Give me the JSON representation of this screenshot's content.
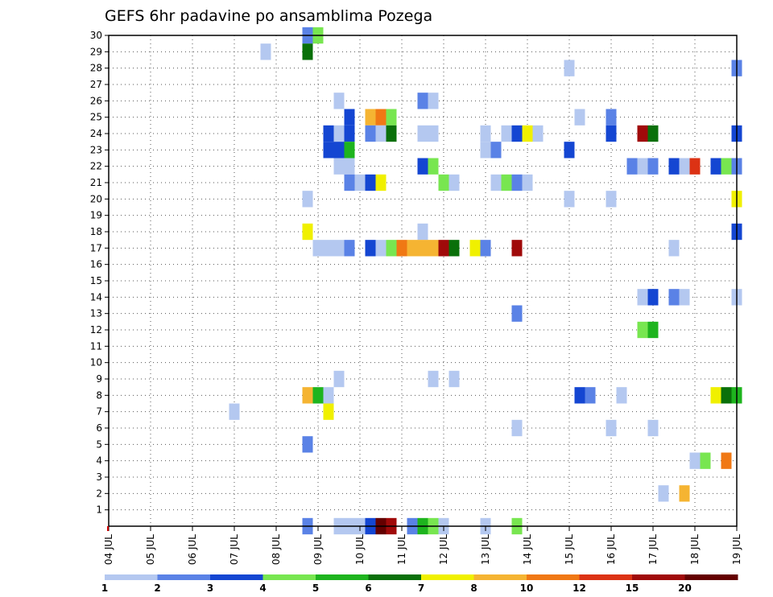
{
  "chart_data": {
    "type": "heatmap",
    "title": "GEFS 6hr padavine po ansamblima Pozega",
    "xlabel": "",
    "ylabel": "",
    "x_tick_labels": [
      "04 JUL",
      "05 JUL",
      "06 JUL",
      "07 JUL",
      "08 JUL",
      "09 JUL",
      "10 JUL",
      "11 JUL",
      "12 JUL",
      "13 JUL",
      "14 JUL",
      "15 JUL",
      "16 JUL",
      "17 JUL",
      "18 JUL",
      "19 JUL"
    ],
    "y_tick_labels": [
      "1",
      "2",
      "3",
      "4",
      "5",
      "6",
      "7",
      "8",
      "9",
      "10",
      "11",
      "12",
      "13",
      "14",
      "15",
      "16",
      "17",
      "18",
      "19",
      "20",
      "21",
      "22",
      "23",
      "24",
      "25",
      "26",
      "27",
      "28",
      "29",
      "30"
    ],
    "x_range_days": [
      4,
      19
    ],
    "y_range": [
      0,
      30
    ],
    "grid": "dotted",
    "legend_position": "bottom",
    "colorbar": {
      "labels": [
        "1",
        "2",
        "3",
        "4",
        "5",
        "6",
        "7",
        "8",
        "10",
        "12",
        "15",
        "20"
      ],
      "colors": [
        "#b4c8f0",
        "#5a82e6",
        "#1446d2",
        "#78e650",
        "#1eb41e",
        "#0a700a",
        "#f0f000",
        "#f5b432",
        "#f07814",
        "#dc3214",
        "#a00a0a",
        "#640000"
      ]
    },
    "palette": [
      "#b4c8f0",
      "#5a82e6",
      "#1446d2",
      "#78e650",
      "#1eb41e",
      "#0a700a",
      "#f0f000",
      "#f5b432",
      "#f07814",
      "#dc3214",
      "#a00a0a",
      "#640000"
    ],
    "cell_format": "[day, ensemble_member, color_class_index(0=1-2mm ... 11=>20mm)]",
    "cells": [
      [
        8.75,
        30,
        1
      ],
      [
        9.0,
        30,
        3
      ],
      [
        7.75,
        29,
        0
      ],
      [
        8.75,
        29,
        5
      ],
      [
        15.0,
        28,
        0
      ],
      [
        19.0,
        28,
        1
      ],
      [
        9.5,
        26,
        0
      ],
      [
        11.5,
        26,
        1
      ],
      [
        11.75,
        26,
        0
      ],
      [
        9.75,
        25,
        2
      ],
      [
        10.25,
        25,
        7
      ],
      [
        10.5,
        25,
        8
      ],
      [
        10.75,
        25,
        3
      ],
      [
        15.25,
        25,
        0
      ],
      [
        16.0,
        25,
        1
      ],
      [
        9.25,
        24,
        2
      ],
      [
        9.5,
        24,
        0
      ],
      [
        9.75,
        24,
        2
      ],
      [
        10.25,
        24,
        1
      ],
      [
        10.5,
        24,
        0
      ],
      [
        10.75,
        24,
        5
      ],
      [
        11.5,
        24,
        0
      ],
      [
        11.75,
        24,
        0
      ],
      [
        13.0,
        24,
        0
      ],
      [
        13.5,
        24,
        0
      ],
      [
        13.75,
        24,
        2
      ],
      [
        14.0,
        24,
        6
      ],
      [
        14.25,
        24,
        0
      ],
      [
        16.0,
        24,
        2
      ],
      [
        16.75,
        24,
        10
      ],
      [
        17.0,
        24,
        5
      ],
      [
        19.0,
        24,
        2
      ],
      [
        9.25,
        23,
        2
      ],
      [
        9.5,
        23,
        2
      ],
      [
        9.75,
        23,
        4
      ],
      [
        13.0,
        23,
        0
      ],
      [
        13.25,
        23,
        1
      ],
      [
        15.0,
        23,
        2
      ],
      [
        9.5,
        22,
        0
      ],
      [
        9.75,
        22,
        0
      ],
      [
        11.5,
        22,
        2
      ],
      [
        11.75,
        22,
        3
      ],
      [
        16.5,
        22,
        1
      ],
      [
        16.75,
        22,
        0
      ],
      [
        17.0,
        22,
        1
      ],
      [
        17.5,
        22,
        2
      ],
      [
        17.75,
        22,
        0
      ],
      [
        18.0,
        22,
        9
      ],
      [
        18.5,
        22,
        2
      ],
      [
        18.75,
        22,
        3
      ],
      [
        19.0,
        22,
        1
      ],
      [
        9.75,
        21,
        1
      ],
      [
        10.0,
        21,
        0
      ],
      [
        10.25,
        21,
        2
      ],
      [
        10.5,
        21,
        6
      ],
      [
        12.0,
        21,
        3
      ],
      [
        12.25,
        21,
        0
      ],
      [
        13.25,
        21,
        0
      ],
      [
        13.5,
        21,
        3
      ],
      [
        13.75,
        21,
        1
      ],
      [
        14.0,
        21,
        0
      ],
      [
        8.75,
        20,
        0
      ],
      [
        15.0,
        20,
        0
      ],
      [
        16.0,
        20,
        0
      ],
      [
        19.0,
        20,
        6
      ],
      [
        8.75,
        18,
        6
      ],
      [
        11.5,
        18,
        0
      ],
      [
        19.0,
        18,
        2
      ],
      [
        9.0,
        17,
        0
      ],
      [
        9.25,
        17,
        0
      ],
      [
        9.5,
        17,
        0
      ],
      [
        9.75,
        17,
        1
      ],
      [
        10.25,
        17,
        2
      ],
      [
        10.5,
        17,
        0
      ],
      [
        10.75,
        17,
        3
      ],
      [
        11.0,
        17,
        8
      ],
      [
        11.25,
        17,
        7
      ],
      [
        11.5,
        17,
        7
      ],
      [
        11.75,
        17,
        7
      ],
      [
        12.0,
        17,
        10
      ],
      [
        12.25,
        17,
        5
      ],
      [
        12.75,
        17,
        6
      ],
      [
        13.0,
        17,
        1
      ],
      [
        13.75,
        17,
        10
      ],
      [
        17.5,
        17,
        0
      ],
      [
        16.75,
        14,
        0
      ],
      [
        17.0,
        14,
        2
      ],
      [
        17.5,
        14,
        1
      ],
      [
        17.75,
        14,
        0
      ],
      [
        19.0,
        14,
        0
      ],
      [
        13.75,
        13,
        1
      ],
      [
        16.75,
        12,
        3
      ],
      [
        17.0,
        12,
        4
      ],
      [
        9.5,
        9,
        0
      ],
      [
        11.75,
        9,
        0
      ],
      [
        12.25,
        9,
        0
      ],
      [
        8.75,
        8,
        7
      ],
      [
        9.0,
        8,
        4
      ],
      [
        9.25,
        8,
        0
      ],
      [
        15.25,
        8,
        2
      ],
      [
        15.5,
        8,
        1
      ],
      [
        16.25,
        8,
        0
      ],
      [
        18.5,
        8,
        6
      ],
      [
        18.75,
        8,
        5
      ],
      [
        19.0,
        8,
        4
      ],
      [
        7.0,
        7,
        0
      ],
      [
        9.25,
        7,
        6
      ],
      [
        13.75,
        6,
        0
      ],
      [
        16.0,
        6,
        0
      ],
      [
        17.0,
        6,
        0
      ],
      [
        8.75,
        5,
        1
      ],
      [
        18.0,
        4,
        0
      ],
      [
        18.25,
        4,
        3
      ],
      [
        18.75,
        4,
        8
      ],
      [
        17.25,
        2,
        0
      ],
      [
        17.75,
        2,
        7
      ],
      [
        8.75,
        0,
        1
      ],
      [
        9.5,
        0,
        0
      ],
      [
        9.75,
        0,
        0
      ],
      [
        10.0,
        0,
        0
      ],
      [
        10.25,
        0,
        2
      ],
      [
        10.5,
        0,
        11
      ],
      [
        10.75,
        0,
        10
      ],
      [
        11.25,
        0,
        1
      ],
      [
        11.5,
        0,
        4
      ],
      [
        11.75,
        0,
        3
      ],
      [
        12.0,
        0,
        0
      ],
      [
        13.0,
        0,
        0
      ],
      [
        13.75,
        0,
        3
      ]
    ]
  }
}
